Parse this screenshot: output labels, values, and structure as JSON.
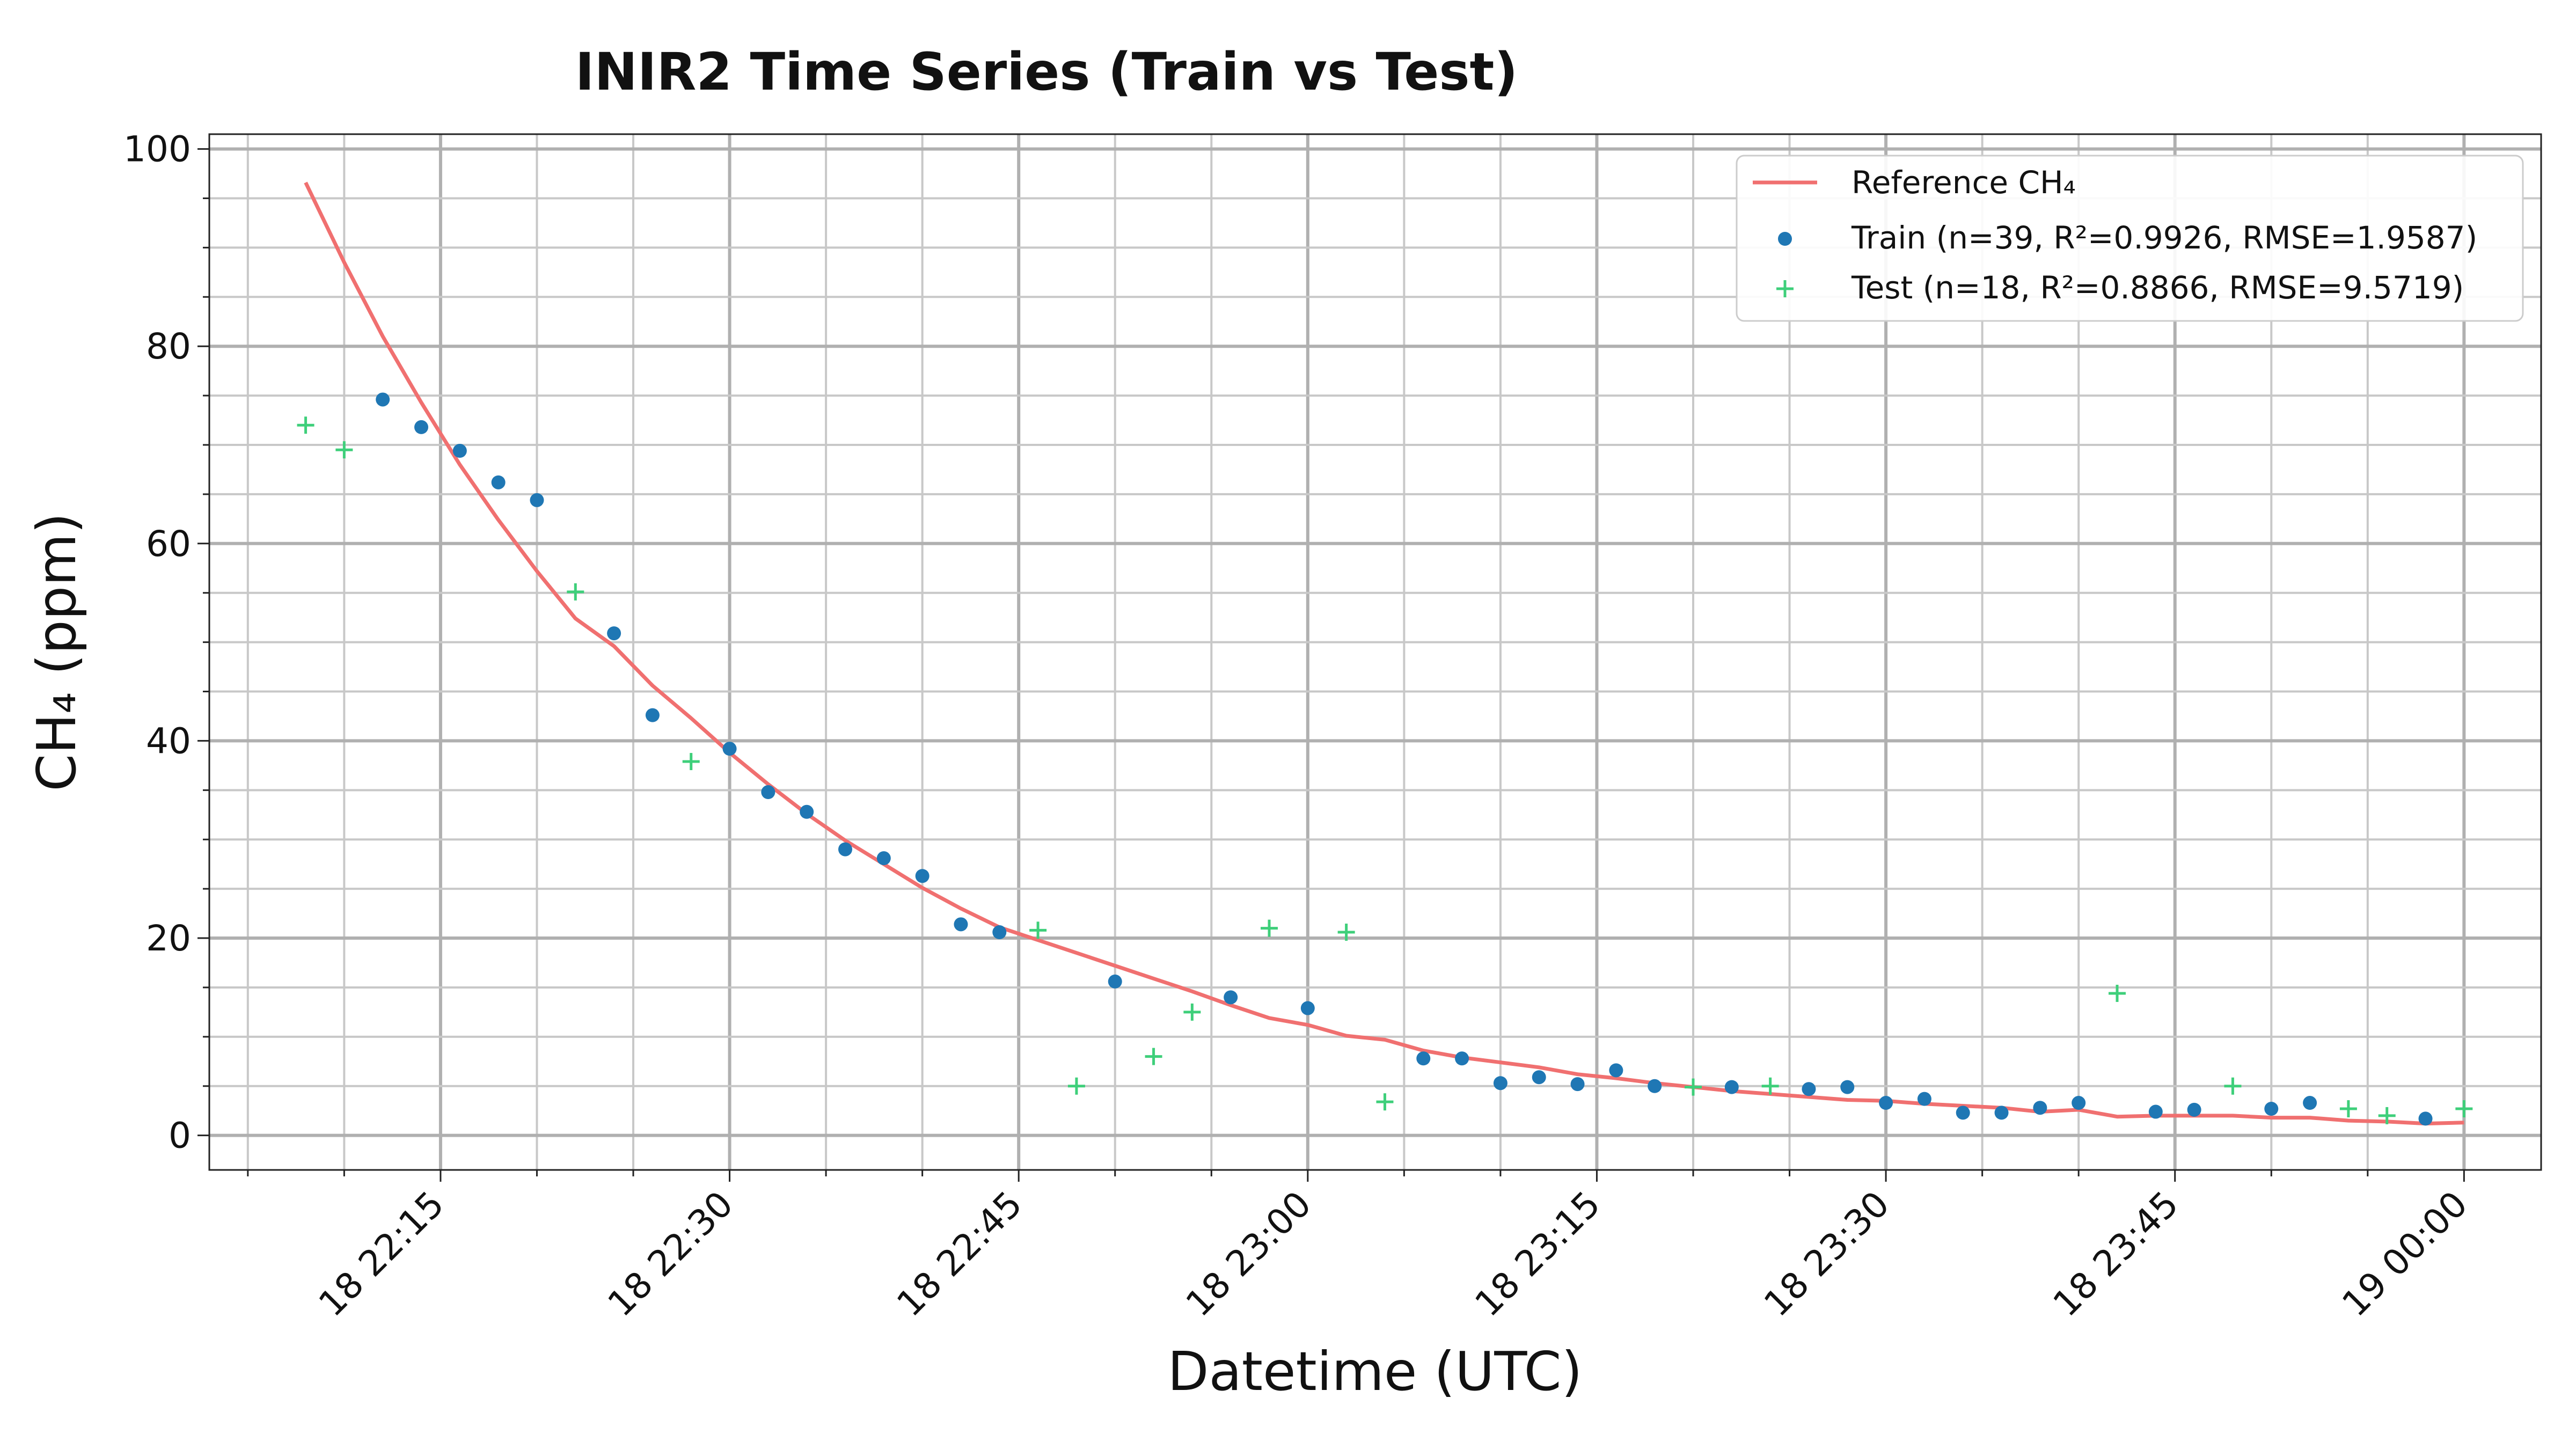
{
  "chart_data": {
    "type": "scatter",
    "title": "INIR2 Time Series (Train vs Test)",
    "xlabel": "Datetime (UTC)",
    "ylabel": "CH₄ (ppm)",
    "x_scale": "time",
    "x_range": [
      "2024-01-18 22:03",
      "2024-01-19 00:04"
    ],
    "y_range": [
      -3.5,
      101.5
    ],
    "y_ticks": [
      0,
      20,
      40,
      60,
      80,
      100
    ],
    "x_ticks": [
      {
        "time": "2024-01-18 22:15",
        "label": "18 22:15"
      },
      {
        "time": "2024-01-18 22:30",
        "label": "18 22:30"
      },
      {
        "time": "2024-01-18 22:45",
        "label": "18 22:45"
      },
      {
        "time": "2024-01-18 23:00",
        "label": "18 23:00"
      },
      {
        "time": "2024-01-18 23:15",
        "label": "18 23:15"
      },
      {
        "time": "2024-01-18 23:30",
        "label": "18 23:30"
      },
      {
        "time": "2024-01-18 23:45",
        "label": "18 23:45"
      },
      {
        "time": "2024-01-19 00:00",
        "label": "19 00:00"
      }
    ],
    "grid": true,
    "legend_position": "top-right",
    "series": [
      {
        "name": "Reference CH₄",
        "kind": "line",
        "color": "#f07070",
        "points": [
          [
            "2024-01-18 22:08",
            96.6
          ],
          [
            "2024-01-18 22:10",
            88.5
          ],
          [
            "2024-01-18 22:12",
            81.0
          ],
          [
            "2024-01-18 22:14",
            74.3
          ],
          [
            "2024-01-18 22:16",
            68.0
          ],
          [
            "2024-01-18 22:18",
            62.4
          ],
          [
            "2024-01-18 22:20",
            57.2
          ],
          [
            "2024-01-18 22:22",
            52.4
          ],
          [
            "2024-01-18 22:24",
            49.6
          ],
          [
            "2024-01-18 22:26",
            45.6
          ],
          [
            "2024-01-18 22:28",
            42.3
          ],
          [
            "2024-01-18 22:30",
            38.8
          ],
          [
            "2024-01-18 22:32",
            35.6
          ],
          [
            "2024-01-18 22:34",
            32.6
          ],
          [
            "2024-01-18 22:36",
            29.9
          ],
          [
            "2024-01-18 22:38",
            27.5
          ],
          [
            "2024-01-18 22:40",
            25.1
          ],
          [
            "2024-01-18 22:42",
            23.0
          ],
          [
            "2024-01-18 22:44",
            21.1
          ],
          [
            "2024-01-18 22:46",
            19.8
          ],
          [
            "2024-01-18 22:48",
            18.5
          ],
          [
            "2024-01-18 22:50",
            17.2
          ],
          [
            "2024-01-18 22:52",
            15.9
          ],
          [
            "2024-01-18 22:54",
            14.6
          ],
          [
            "2024-01-18 22:56",
            13.2
          ],
          [
            "2024-01-18 22:58",
            11.9
          ],
          [
            "2024-01-18 23:00",
            11.2
          ],
          [
            "2024-01-18 23:02",
            10.1
          ],
          [
            "2024-01-18 23:04",
            9.7
          ],
          [
            "2024-01-18 23:06",
            8.6
          ],
          [
            "2024-01-18 23:08",
            7.9
          ],
          [
            "2024-01-18 23:10",
            7.4
          ],
          [
            "2024-01-18 23:12",
            6.9
          ],
          [
            "2024-01-18 23:14",
            6.2
          ],
          [
            "2024-01-18 23:16",
            5.8
          ],
          [
            "2024-01-18 23:18",
            5.3
          ],
          [
            "2024-01-18 23:20",
            4.9
          ],
          [
            "2024-01-18 23:22",
            4.5
          ],
          [
            "2024-01-18 23:24",
            4.2
          ],
          [
            "2024-01-18 23:26",
            3.9
          ],
          [
            "2024-01-18 23:28",
            3.6
          ],
          [
            "2024-01-18 23:30",
            3.5
          ],
          [
            "2024-01-18 23:32",
            3.2
          ],
          [
            "2024-01-18 23:34",
            3.0
          ],
          [
            "2024-01-18 23:36",
            2.8
          ],
          [
            "2024-01-18 23:38",
            2.4
          ],
          [
            "2024-01-18 23:40",
            2.6
          ],
          [
            "2024-01-18 23:42",
            1.9
          ],
          [
            "2024-01-18 23:44",
            2.0
          ],
          [
            "2024-01-18 23:46",
            2.0
          ],
          [
            "2024-01-18 23:48",
            2.0
          ],
          [
            "2024-01-18 23:50",
            1.8
          ],
          [
            "2024-01-18 23:52",
            1.8
          ],
          [
            "2024-01-18 23:54",
            1.5
          ],
          [
            "2024-01-18 23:56",
            1.4
          ],
          [
            "2024-01-18 23:58",
            1.2
          ],
          [
            "2024-01-19 00:00",
            1.3
          ]
        ]
      },
      {
        "name": "Train (n=39, R²=0.9926, RMSE=1.9587)",
        "kind": "scatter",
        "marker": "circle",
        "color": "#1f77b4",
        "points": [
          [
            "2024-01-18 22:12",
            74.6
          ],
          [
            "2024-01-18 22:14",
            71.8
          ],
          [
            "2024-01-18 22:16",
            69.4
          ],
          [
            "2024-01-18 22:18",
            66.2
          ],
          [
            "2024-01-18 22:20",
            64.4
          ],
          [
            "2024-01-18 22:24",
            50.9
          ],
          [
            "2024-01-18 22:26",
            42.6
          ],
          [
            "2024-01-18 22:30",
            39.2
          ],
          [
            "2024-01-18 22:32",
            34.8
          ],
          [
            "2024-01-18 22:34",
            32.8
          ],
          [
            "2024-01-18 22:36",
            29.0
          ],
          [
            "2024-01-18 22:38",
            28.1
          ],
          [
            "2024-01-18 22:40",
            26.3
          ],
          [
            "2024-01-18 22:42",
            21.4
          ],
          [
            "2024-01-18 22:44",
            20.6
          ],
          [
            "2024-01-18 22:50",
            15.6
          ],
          [
            "2024-01-18 22:56",
            14.0
          ],
          [
            "2024-01-18 23:00",
            12.9
          ],
          [
            "2024-01-18 23:06",
            7.8
          ],
          [
            "2024-01-18 23:08",
            7.8
          ],
          [
            "2024-01-18 23:10",
            5.3
          ],
          [
            "2024-01-18 23:12",
            5.9
          ],
          [
            "2024-01-18 23:14",
            5.2
          ],
          [
            "2024-01-18 23:16",
            6.6
          ],
          [
            "2024-01-18 23:18",
            5.0
          ],
          [
            "2024-01-18 23:22",
            4.9
          ],
          [
            "2024-01-18 23:26",
            4.7
          ],
          [
            "2024-01-18 23:28",
            4.9
          ],
          [
            "2024-01-18 23:30",
            3.3
          ],
          [
            "2024-01-18 23:32",
            3.7
          ],
          [
            "2024-01-18 23:34",
            2.3
          ],
          [
            "2024-01-18 23:36",
            2.3
          ],
          [
            "2024-01-18 23:38",
            2.8
          ],
          [
            "2024-01-18 23:40",
            3.3
          ],
          [
            "2024-01-18 23:44",
            2.4
          ],
          [
            "2024-01-18 23:46",
            2.6
          ],
          [
            "2024-01-18 23:50",
            2.7
          ],
          [
            "2024-01-18 23:52",
            3.3
          ],
          [
            "2024-01-18 23:58",
            1.7
          ]
        ]
      },
      {
        "name": "Test (n=18, R²=0.8866, RMSE=9.5719)",
        "kind": "scatter",
        "marker": "plus",
        "color": "#3ecf7a",
        "points": [
          [
            "2024-01-18 22:08",
            72.0
          ],
          [
            "2024-01-18 22:10",
            69.5
          ],
          [
            "2024-01-18 22:22",
            55.1
          ],
          [
            "2024-01-18 22:28",
            37.9
          ],
          [
            "2024-01-18 22:46",
            20.8
          ],
          [
            "2024-01-18 22:48",
            5.0
          ],
          [
            "2024-01-18 22:52",
            8.0
          ],
          [
            "2024-01-18 22:54",
            12.5
          ],
          [
            "2024-01-18 22:58",
            21.0
          ],
          [
            "2024-01-18 23:02",
            20.6
          ],
          [
            "2024-01-18 23:04",
            3.4
          ],
          [
            "2024-01-18 23:20",
            4.9
          ],
          [
            "2024-01-18 23:24",
            5.0
          ],
          [
            "2024-01-18 23:42",
            14.4
          ],
          [
            "2024-01-18 23:48",
            5.0
          ],
          [
            "2024-01-18 23:54",
            2.7
          ],
          [
            "2024-01-18 23:56",
            2.0
          ],
          [
            "2024-01-19 00:00",
            2.7
          ]
        ]
      }
    ]
  }
}
